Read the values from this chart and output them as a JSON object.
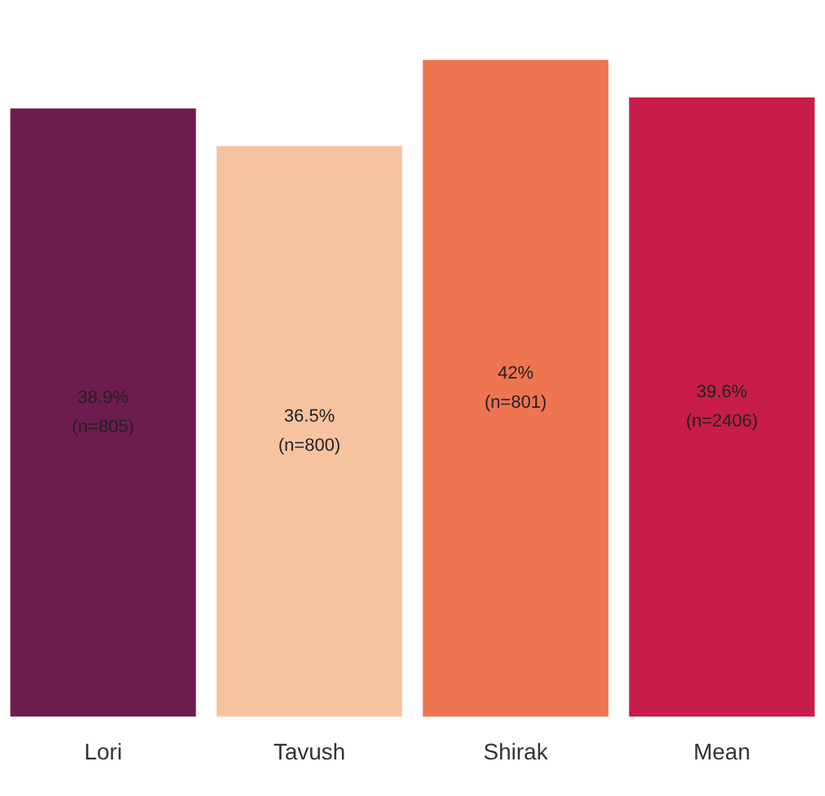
{
  "chart_data": {
    "type": "bar",
    "categories": [
      "Lori",
      "Tavush",
      "Shirak",
      "Mean"
    ],
    "values": [
      38.9,
      36.5,
      42,
      39.6
    ],
    "colors": [
      "#6d1c4f",
      "#f6c3a0",
      "#ef7450",
      "#c81c4b"
    ],
    "value_labels": [
      "38.9%\n(n=805)",
      "36.5%\n(n=800)",
      "42%\n(n=801)",
      "39.6%\n(n=2406)"
    ],
    "tick_labels": "x",
    "grid": false,
    "legend": false
  }
}
